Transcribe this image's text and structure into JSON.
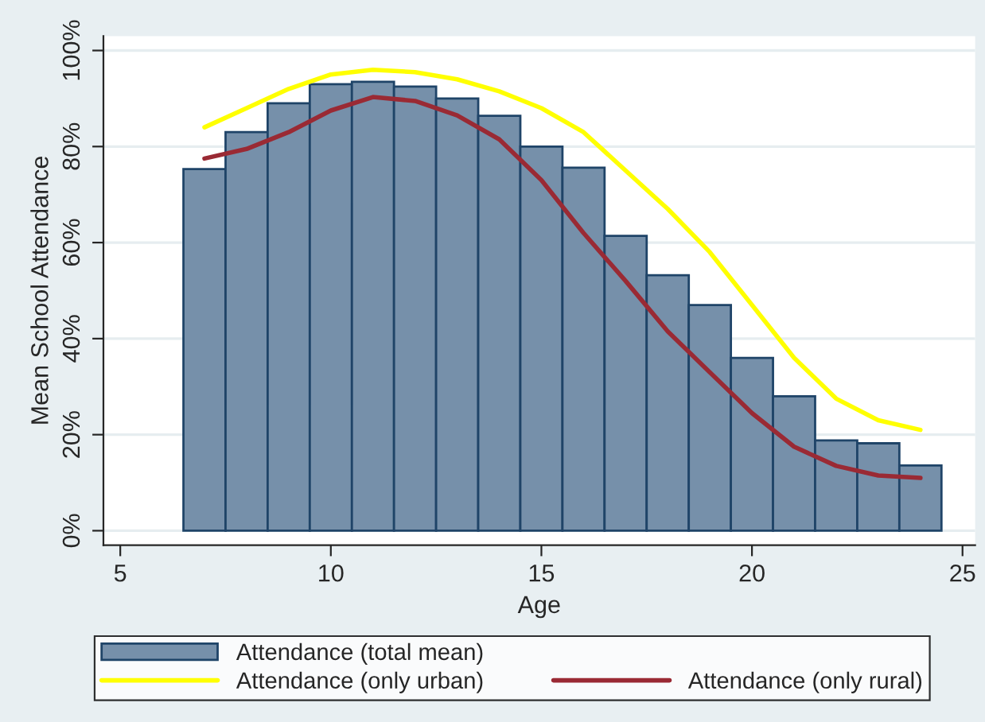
{
  "chart_data": {
    "type": "bar",
    "xlabel": "Age",
    "ylabel": "Mean School Attendance",
    "x": [
      7,
      8,
      9,
      10,
      11,
      12,
      13,
      14,
      15,
      16,
      17,
      18,
      19,
      20,
      21,
      22,
      23,
      24
    ],
    "series": [
      {
        "name": "Attendance (total mean)",
        "color": "#7690aa",
        "values": [
          75.3,
          83,
          89,
          93,
          93.5,
          92.5,
          90,
          86.4,
          80,
          75.6,
          61.4,
          53.2,
          47,
          36,
          28,
          18.8,
          18.2,
          13.6
        ]
      },
      {
        "name": "Attendance (only urban)",
        "type": "line",
        "color": "#ffff00",
        "values": [
          84,
          88,
          92,
          95,
          96,
          95.5,
          94,
          91.5,
          88,
          83,
          75,
          67,
          58,
          47,
          36,
          27.5,
          23,
          21
        ]
      },
      {
        "name": "Attendance (only rural)",
        "type": "line",
        "color": "#9a2a34",
        "values": [
          77.5,
          79.5,
          83,
          87.5,
          90.3,
          89.5,
          86.5,
          81.5,
          73,
          62,
          52,
          41.5,
          33,
          24.5,
          17.5,
          13.5,
          11.5,
          11
        ]
      }
    ],
    "xlim": [
      4.6,
      25.3
    ],
    "xticks": [
      5,
      10,
      15,
      20,
      25
    ],
    "ylim": [
      -3,
      103
    ],
    "yticks": [
      {
        "value": 0,
        "label": "0%"
      },
      {
        "value": 20,
        "label": "20%"
      },
      {
        "value": 40,
        "label": "40%"
      },
      {
        "value": 60,
        "label": "60%"
      },
      {
        "value": 80,
        "label": "80%"
      },
      {
        "value": 100,
        "label": "100%"
      }
    ],
    "grid": "y",
    "legend": "bottom",
    "line_style": "solid",
    "marker": "none"
  }
}
